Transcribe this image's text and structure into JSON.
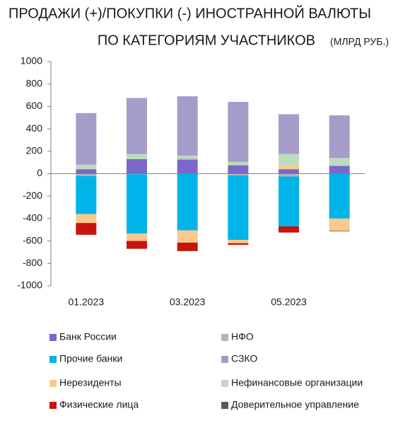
{
  "chart_data": {
    "type": "stacked-bar",
    "title": [
      "ПРОДАЖИ (+)/ПОКУПКИ (-) ИНОСТРАННОЙ ВАЛЮТЫ",
      "ПО КАТЕГОРИЯМ УЧАСТНИКОВ"
    ],
    "subtitle": "(МЛРД РУБ.)",
    "categories": [
      "01.2023",
      null,
      "03.2023",
      null,
      "05.2023",
      null
    ],
    "ylim": [
      -1000,
      1000
    ],
    "yticks": [
      1000,
      800,
      600,
      400,
      200,
      0,
      -200,
      -400,
      -600,
      -800,
      -1000
    ],
    "series": [
      {
        "name": "Банк России",
        "color": "#7b68c8",
        "values": [
          40,
          130,
          125,
          75,
          40,
          70
        ]
      },
      {
        "name": "НФО",
        "color": "#b4b4b4",
        "values": [
          -20,
          -5,
          10,
          -15,
          -25,
          0
        ]
      },
      {
        "name": "Прочие банки",
        "color": "#00b4ea",
        "values": [
          -340,
          -530,
          -505,
          -575,
          -445,
          -400
        ]
      },
      {
        "name": "Нерезиденты",
        "color": "#fac98e",
        "values": [
          -80,
          -65,
          -110,
          -30,
          35,
          -110
        ]
      },
      {
        "name": "Нефинансовые организации",
        "color": "#bcdcbc",
        "values": [
          40,
          45,
          25,
          30,
          100,
          70
        ]
      },
      {
        "name": "Физические лица",
        "color": "#c8140c",
        "values": [
          -105,
          -70,
          -75,
          -15,
          -55,
          0
        ]
      },
      {
        "name": "Доверительное управление",
        "color": "#5a5a5a",
        "values": [
          0,
          0,
          0,
          0,
          0,
          -5
        ]
      },
      {
        "name": "СЗКО",
        "color": "#a59cc9",
        "values": [
          460,
          500,
          530,
          535,
          355,
          380
        ]
      }
    ]
  }
}
